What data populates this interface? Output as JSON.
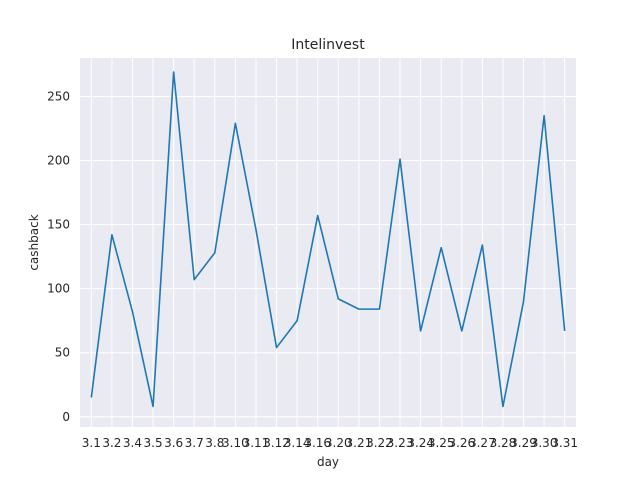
{
  "chart_data": {
    "type": "line",
    "title": "Intelinvest",
    "xlabel": "day",
    "ylabel": "cashback",
    "categories": [
      "3.1",
      "3.2",
      "3.4",
      "3.5",
      "3.6",
      "3.7",
      "3.8",
      "3.10",
      "3.11",
      "3.12",
      "3.14",
      "3.16",
      "3.20",
      "3.21",
      "3.22",
      "3.23",
      "3.24",
      "3.25",
      "3.26",
      "3.27",
      "3.28",
      "3.29",
      "3.30",
      "3.31"
    ],
    "values": [
      15,
      142,
      82,
      8,
      269,
      107,
      128,
      229,
      146,
      54,
      75,
      157,
      92,
      84,
      84,
      201,
      67,
      132,
      67,
      134,
      8,
      90,
      235,
      67
    ],
    "ylim": [
      -8,
      280
    ],
    "yticks": [
      0,
      50,
      100,
      150,
      200,
      250
    ],
    "grid": true,
    "legend": "none",
    "style": {
      "background": "#eaeaf2",
      "grid_color": "#ffffff",
      "line_color": "#1f77b4",
      "text_color": "#262626"
    }
  }
}
